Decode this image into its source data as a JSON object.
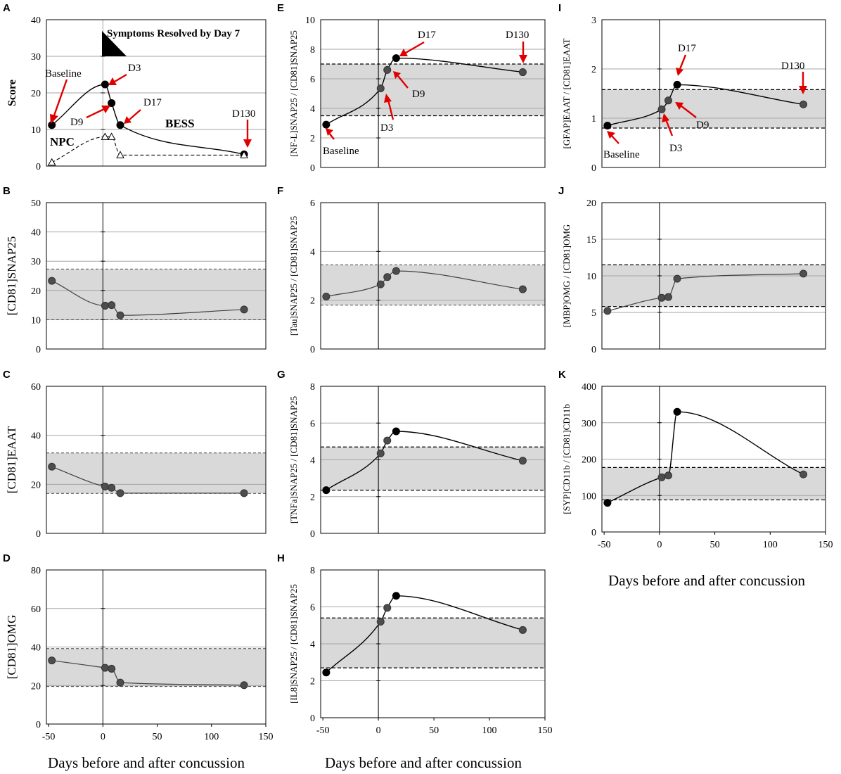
{
  "figure": {
    "x_axis_label": "Days before and after concussion",
    "x_ticks": [
      -50,
      0,
      50,
      100,
      150
    ],
    "xlim": [
      -52,
      150
    ]
  },
  "chart_data": [
    {
      "id": "A",
      "letter": "A",
      "type": "line",
      "ylabel": "Score",
      "ylim": [
        0,
        40
      ],
      "yticks": [
        0,
        10,
        20,
        30,
        40
      ],
      "series": [
        {
          "name": "BESS",
          "style": "solid-black",
          "x": [
            -47,
            2,
            8,
            16,
            130
          ],
          "y": [
            11.2,
            22.3,
            17.2,
            11.2,
            3.2
          ]
        },
        {
          "name": "NPC",
          "style": "dashed-triangles",
          "x": [
            -47,
            2,
            8,
            16,
            130
          ],
          "y": [
            1,
            8,
            8,
            3,
            3
          ]
        }
      ],
      "annotations": {
        "symptoms": "Symptoms Resolved by Day 7",
        "baseline": "Baseline",
        "d3": "D3",
        "d9": "D9",
        "d17": "D17",
        "d130": "D130",
        "npc": "NPC",
        "bess": "BESS"
      }
    },
    {
      "id": "B",
      "letter": "B",
      "type": "line",
      "ylabel": "[CD81]SNAP25",
      "ylim": [
        0,
        50
      ],
      "yticks": [
        0,
        10,
        20,
        30,
        40,
        50
      ],
      "band": [
        10,
        27.3
      ],
      "series": [
        {
          "name": "[CD81]SNAP25",
          "x": [
            -47,
            2,
            8,
            16,
            130
          ],
          "y": [
            23.3,
            14.8,
            15,
            11.5,
            13.5
          ]
        }
      ]
    },
    {
      "id": "C",
      "letter": "C",
      "type": "line",
      "ylabel": "[CD81]EAAT",
      "ylim": [
        0,
        60
      ],
      "yticks": [
        0,
        20,
        40,
        60
      ],
      "band": [
        16.3,
        32.8
      ],
      "series": [
        {
          "name": "[CD81]EAAT",
          "x": [
            -47,
            2,
            8,
            16,
            130
          ],
          "y": [
            27.2,
            19.1,
            18.6,
            16.4,
            16.4
          ]
        }
      ]
    },
    {
      "id": "D",
      "letter": "D",
      "type": "line",
      "ylabel": "[CD81]OMG",
      "ylim": [
        0,
        80
      ],
      "yticks": [
        0,
        20,
        40,
        60,
        80
      ],
      "band": [
        19.5,
        39.2
      ],
      "series": [
        {
          "name": "[CD81]OMG",
          "x": [
            -47,
            2,
            8,
            16,
            130
          ],
          "y": [
            33,
            29.2,
            28.7,
            21.5,
            20.2
          ]
        }
      ]
    },
    {
      "id": "E",
      "letter": "E",
      "type": "line",
      "ylabel": "[NF-L]SNAP25 / [CD81]SNAP25",
      "ylim": [
        0,
        10
      ],
      "yticks": [
        0,
        2,
        4,
        6,
        8,
        10
      ],
      "band": [
        3.5,
        7.0
      ],
      "series": [
        {
          "name": "[NF-L]SNAP25 / [CD81]SNAP25",
          "x": [
            -47,
            2,
            8,
            16,
            130
          ],
          "y": [
            2.9,
            5.35,
            6.6,
            7.4,
            6.45
          ]
        }
      ],
      "annotations": {
        "baseline": "Baseline",
        "d3": "D3",
        "d9": "D9",
        "d17": "D17",
        "d130": "D130"
      }
    },
    {
      "id": "F",
      "letter": "F",
      "type": "line",
      "ylabel": "[Tau]SNAP25 / [CD81]SNAP25",
      "ylim": [
        0,
        6
      ],
      "yticks": [
        0,
        2,
        4,
        6
      ],
      "band": [
        1.8,
        3.45
      ],
      "series": [
        {
          "name": "[Tau]SNAP25 / [CD81]SNAP25",
          "x": [
            -47,
            2,
            8,
            16,
            130
          ],
          "y": [
            2.15,
            2.65,
            2.95,
            3.2,
            2.45
          ]
        }
      ]
    },
    {
      "id": "G",
      "letter": "G",
      "type": "line",
      "ylabel": "[TNFa]SNAP25 / [CD81]SNAP25",
      "ylim": [
        0,
        8
      ],
      "yticks": [
        0,
        2,
        4,
        6,
        8
      ],
      "band": [
        2.35,
        4.7
      ],
      "series": [
        {
          "name": "[TNFa]SNAP25 / [CD81]SNAP25",
          "x": [
            -47,
            2,
            8,
            16,
            130
          ],
          "y": [
            2.35,
            4.35,
            5.05,
            5.55,
            3.95
          ]
        }
      ]
    },
    {
      "id": "H",
      "letter": "H",
      "type": "line",
      "ylabel": "[IL8]SNAP25 / [CD81]SNAP25",
      "ylim": [
        0,
        8
      ],
      "yticks": [
        0,
        2,
        4,
        6,
        8
      ],
      "band": [
        2.7,
        5.4
      ],
      "series": [
        {
          "name": "[IL8]SNAP25 / [CD81]SNAP25",
          "x": [
            -47,
            2,
            8,
            16,
            130
          ],
          "y": [
            2.45,
            5.2,
            5.95,
            6.6,
            4.75
          ]
        }
      ]
    },
    {
      "id": "I",
      "letter": "I",
      "type": "line",
      "ylabel": "[GFAP]EAAT / [CD81]EAAT",
      "ylim": [
        0,
        3
      ],
      "yticks": [
        0,
        1,
        2,
        3
      ],
      "band": [
        0.8,
        1.58
      ],
      "series": [
        {
          "name": "[GFAP]EAAT / [CD81]EAAT",
          "x": [
            -47,
            2,
            8,
            16,
            130
          ],
          "y": [
            0.85,
            1.18,
            1.36,
            1.68,
            1.28
          ]
        }
      ],
      "annotations": {
        "baseline": "Baseline",
        "d3": "D3",
        "d9": "D9",
        "d17": "D17",
        "d130": "D130"
      }
    },
    {
      "id": "J",
      "letter": "J",
      "type": "line",
      "ylabel": "[MBP]OMG / [CD81]OMG",
      "ylim": [
        0,
        20
      ],
      "yticks": [
        0,
        5,
        10,
        15,
        20
      ],
      "band": [
        5.8,
        11.5
      ],
      "series": [
        {
          "name": "[MBP]OMG / [CD81]OMG",
          "x": [
            -47,
            2,
            8,
            16,
            130
          ],
          "y": [
            5.2,
            7.0,
            7.1,
            9.6,
            10.3
          ]
        }
      ]
    },
    {
      "id": "K",
      "letter": "K",
      "type": "line",
      "ylabel": "[SYP]CD11b / [CD81]CD11b",
      "ylim": [
        0,
        400
      ],
      "yticks": [
        0,
        100,
        200,
        300,
        400
      ],
      "band": [
        88,
        177
      ],
      "series": [
        {
          "name": "[SYP]CD11b / [CD81]CD11b",
          "x": [
            -47,
            2,
            8,
            16,
            130
          ],
          "y": [
            80,
            150,
            155,
            330,
            158
          ]
        }
      ]
    }
  ]
}
